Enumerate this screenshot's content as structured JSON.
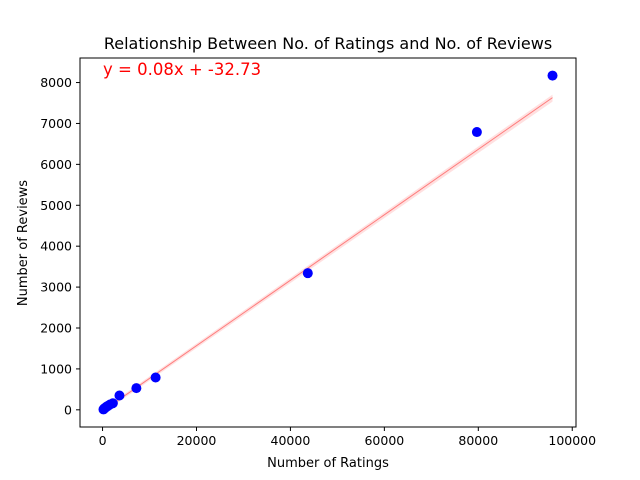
{
  "chart_data": {
    "type": "scatter",
    "title": "Relationship Between No. of Ratings and No. of Reviews",
    "xlabel": "Number of Ratings",
    "ylabel": "Number of Reviews",
    "xlim": [
      -4800,
      100800
    ],
    "ylim": [
      -420,
      8600
    ],
    "xticks": [
      0,
      20000,
      40000,
      60000,
      80000,
      100000
    ],
    "yticks": [
      0,
      1000,
      2000,
      3000,
      4000,
      5000,
      6000,
      7000,
      8000
    ],
    "grid": false,
    "series": [
      {
        "marker_color": "#0000ff",
        "points": [
          {
            "x": 200,
            "y": 10
          },
          {
            "x": 350,
            "y": 30
          },
          {
            "x": 500,
            "y": 45
          },
          {
            "x": 700,
            "y": 60
          },
          {
            "x": 900,
            "y": 80
          },
          {
            "x": 1200,
            "y": 100
          },
          {
            "x": 1600,
            "y": 130
          },
          {
            "x": 2200,
            "y": 160
          },
          {
            "x": 3600,
            "y": 350
          },
          {
            "x": 7200,
            "y": 530
          },
          {
            "x": 11300,
            "y": 790
          },
          {
            "x": 43700,
            "y": 3340
          },
          {
            "x": 79700,
            "y": 6790
          },
          {
            "x": 95800,
            "y": 8170
          }
        ]
      }
    ],
    "fit_line": {
      "slope": 0.08,
      "intercept": -32.73,
      "x_range": [
        200,
        95800
      ],
      "color": "#ff0000",
      "label": "y = 0.08x + -32.73"
    }
  }
}
